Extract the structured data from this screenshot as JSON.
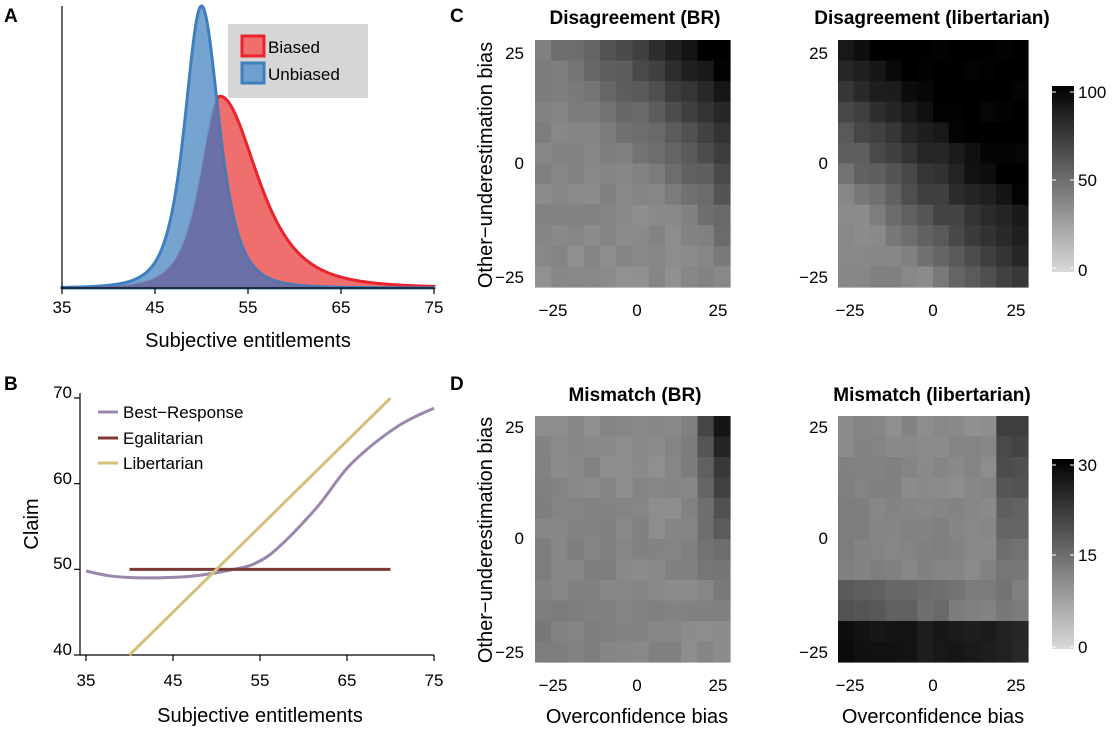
{
  "panel_labels": {
    "a": "A",
    "b": "B",
    "c": "C",
    "d": "D"
  },
  "chart_data": [
    {
      "id": "A",
      "type": "area",
      "xlabel": "Subjective entitlements",
      "ylabel": "",
      "xlim": [
        35,
        75
      ],
      "xticks": [
        "35",
        "45",
        "55",
        "65",
        "75"
      ],
      "legend_position": "top-right",
      "legend": [
        {
          "name": "Biased",
          "color": "#e8242c",
          "fill": "#ef6e6e"
        },
        {
          "name": "Unbiased",
          "color": "#3f7fbf",
          "fill": "#6f9fcf"
        }
      ],
      "series": [
        {
          "name": "Unbiased",
          "peak_x": 50,
          "peak_y": 1.0,
          "scale_left": 1.9,
          "scale_right": 2.0
        },
        {
          "name": "Biased",
          "peak_x": 52,
          "peak_y": 0.68,
          "scale_left": 2.2,
          "scale_right": 4.2
        }
      ],
      "overlap_color": "#6a6aa0"
    },
    {
      "id": "B",
      "type": "line",
      "xlabel": "Subjective entitlements",
      "ylabel": "Claim",
      "xlim": [
        35,
        75
      ],
      "ylim": [
        40,
        70
      ],
      "xticks": [
        "35",
        "45",
        "55",
        "65",
        "75"
      ],
      "yticks": [
        "40",
        "50",
        "60",
        "70"
      ],
      "legend_position": "top-left",
      "series": [
        {
          "name": "Best−Response",
          "color": "#9b86ad",
          "x": [
            35,
            38,
            42,
            46,
            48,
            50,
            52,
            54,
            56,
            58,
            60,
            62,
            65,
            68,
            71,
            73,
            75
          ],
          "y": [
            49.8,
            49.2,
            49.0,
            49.1,
            49.3,
            49.6,
            50.0,
            50.5,
            51.6,
            53.4,
            55.5,
            57.8,
            61.8,
            64.6,
            66.8,
            67.9,
            68.8
          ]
        },
        {
          "name": "Egalitarian",
          "color": "#7b3a35",
          "x": [
            40,
            70
          ],
          "y": [
            50,
            50
          ]
        },
        {
          "name": "Libertarian",
          "color": "#d4c07a",
          "x": [
            40,
            70
          ],
          "y": [
            40,
            70
          ]
        }
      ]
    },
    {
      "id": "C1",
      "type": "heatmap",
      "title": "Disagreement (BR)",
      "ylabel": "Other−underestimation bias",
      "xticks": [
        "−25",
        "0",
        "25"
      ],
      "yticks": [
        "25",
        "0",
        "−25"
      ],
      "xlim": [
        -25,
        25
      ],
      "ylim": [
        -25,
        25
      ],
      "vlim": [
        0,
        100
      ],
      "grid_size": [
        12,
        12
      ],
      "corner_values": {
        "bottom_left": 38,
        "bottom_right": 32,
        "top_left": 45,
        "top_right": 98
      },
      "pattern": "dark in upper-right corner"
    },
    {
      "id": "C2",
      "type": "heatmap",
      "title": "Disagreement (libertarian)",
      "xticks": [
        "−25",
        "0",
        "25"
      ],
      "yticks": [
        "25",
        "0",
        "−25"
      ],
      "xlim": [
        -25,
        25
      ],
      "ylim": [
        -25,
        25
      ],
      "vlim": [
        0,
        100
      ],
      "grid_size": [
        12,
        12
      ],
      "corner_values": {
        "bottom_left": 40,
        "bottom_right": 75,
        "top_left": 80,
        "top_right": 98
      },
      "pattern": "dark in upper and right regions"
    },
    {
      "id": "C_colorbar",
      "type": "colorbar",
      "ticks": [
        "100",
        "50",
        "0"
      ],
      "range": [
        0,
        100
      ]
    },
    {
      "id": "D1",
      "type": "heatmap",
      "title": "Mismatch (BR)",
      "xlabel": "Overconfidence bias",
      "ylabel": "Other−underestimation bias",
      "xticks": [
        "−25",
        "0",
        "25"
      ],
      "yticks": [
        "25",
        "0",
        "−25"
      ],
      "xlim": [
        -25,
        25
      ],
      "ylim": [
        -25,
        25
      ],
      "vlim": [
        0,
        30
      ],
      "grid_size": [
        12,
        12
      ],
      "corner_values": {
        "bottom_left": 13,
        "bottom_right": 10,
        "top_left": 11,
        "top_right": 30
      },
      "pattern": "dark along right edge near top"
    },
    {
      "id": "D2",
      "type": "heatmap",
      "title": "Mismatch (libertarian)",
      "xlabel": "Overconfidence bias",
      "xticks": [
        "−25",
        "0",
        "25"
      ],
      "yticks": [
        "25",
        "0",
        "−25"
      ],
      "xlim": [
        -25,
        25
      ],
      "ylim": [
        -25,
        25
      ],
      "vlim": [
        0,
        30
      ],
      "grid_size": [
        12,
        12
      ],
      "corner_values": {
        "bottom_left": 27,
        "bottom_right": 11,
        "top_left": 12,
        "top_right": 24
      },
      "pattern": "dark along bottom row and right edge"
    },
    {
      "id": "D_colorbar",
      "type": "colorbar",
      "ticks": [
        "30",
        "15",
        "0"
      ],
      "range": [
        0,
        30
      ]
    }
  ]
}
